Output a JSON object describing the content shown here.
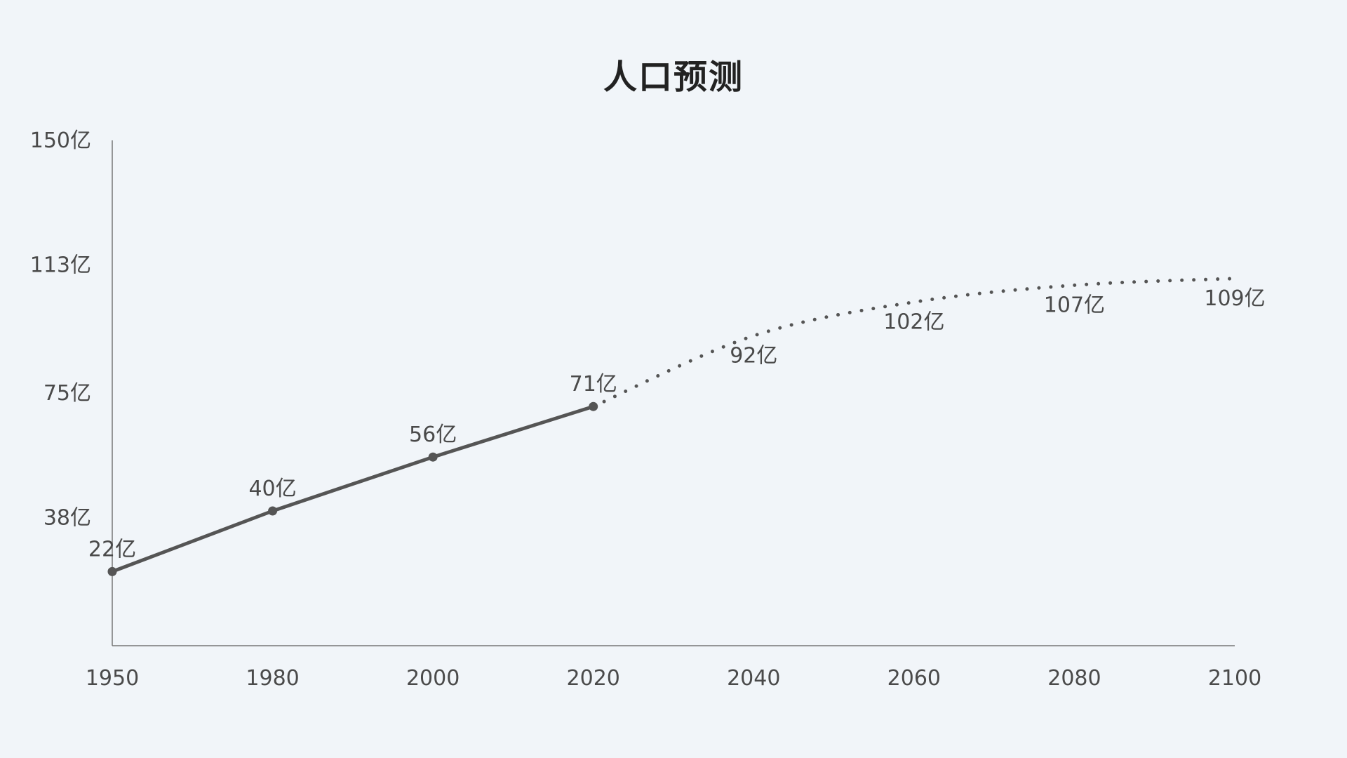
{
  "title": "人口预测",
  "chart_data": {
    "type": "line",
    "title": "人口预测",
    "xlabel": "",
    "ylabel": "",
    "unit_suffix": "亿",
    "x_ticks": [
      1950,
      1980,
      2000,
      2020,
      2040,
      2060,
      2080,
      2100
    ],
    "y_ticks": [
      "38亿",
      "75亿",
      "113亿",
      "150亿"
    ],
    "ylim": [
      0,
      150
    ],
    "xlim": [
      1950,
      2100
    ],
    "grid": false,
    "series": [
      {
        "style": "solid",
        "color": "#555555",
        "x": [
          1950,
          1980,
          2000,
          2020
        ],
        "values": [
          22,
          40,
          56,
          71
        ],
        "labels": [
          "22亿",
          "40亿",
          "56亿",
          "71亿"
        ]
      },
      {
        "style": "dotted",
        "color": "#555555",
        "x": [
          2020,
          2040,
          2060,
          2080,
          2100
        ],
        "values": [
          71,
          92,
          102,
          107,
          109
        ],
        "labels": [
          "",
          "92亿",
          "102亿",
          "107亿",
          "109亿"
        ]
      }
    ]
  }
}
